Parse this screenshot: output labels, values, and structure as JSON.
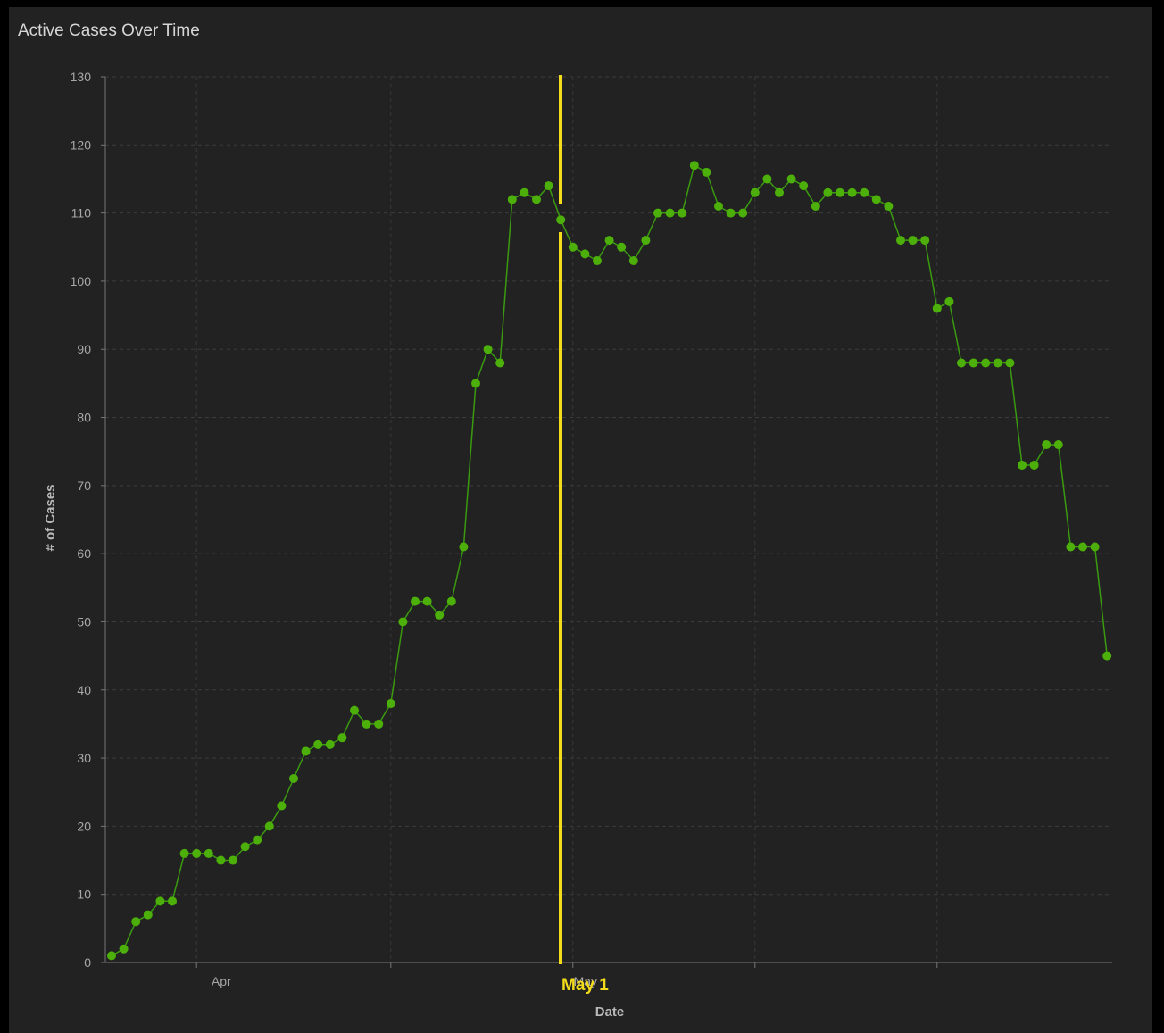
{
  "panel": {
    "title": "Active Cases Over Time"
  },
  "chart_data": {
    "type": "line",
    "title": "Active Cases Over Time",
    "xlabel": "Date",
    "ylabel": "# of Cases",
    "ylim": [
      0,
      130
    ],
    "yticks": [
      0,
      10,
      20,
      30,
      40,
      50,
      60,
      70,
      80,
      90,
      100,
      110,
      120,
      130
    ],
    "x_start": "2020-03-09",
    "x_ticks": [
      {
        "label": "",
        "date": "2020-03-16"
      },
      {
        "label": "Apr",
        "date": "2020-04-01"
      },
      {
        "label": "",
        "date": "2020-04-16"
      },
      {
        "label": "May",
        "date": "2020-05-01"
      },
      {
        "label": "",
        "date": "2020-05-16"
      }
    ],
    "grid": true,
    "line_color": "#3a9a10",
    "marker_color": "#4caf0a",
    "values": [
      1,
      2,
      6,
      7,
      9,
      9,
      16,
      16,
      16,
      15,
      15,
      17,
      18,
      20,
      23,
      27,
      31,
      32,
      32,
      33,
      37,
      35,
      35,
      38,
      50,
      53,
      53,
      51,
      53,
      61,
      85,
      90,
      88,
      112,
      113,
      112,
      114,
      109,
      105,
      104,
      103,
      106,
      105,
      103,
      106,
      110,
      110,
      110,
      117,
      116,
      111,
      110,
      110,
      113,
      115,
      113,
      115,
      114,
      111,
      113,
      113,
      113,
      113,
      112,
      111,
      106,
      106,
      106,
      96,
      97,
      88,
      88,
      88,
      88,
      88,
      73,
      73,
      76,
      76,
      61,
      61,
      61,
      45
    ],
    "annotation": {
      "label": "May 1",
      "color": "#f2dc1b",
      "x_index": 37
    }
  }
}
